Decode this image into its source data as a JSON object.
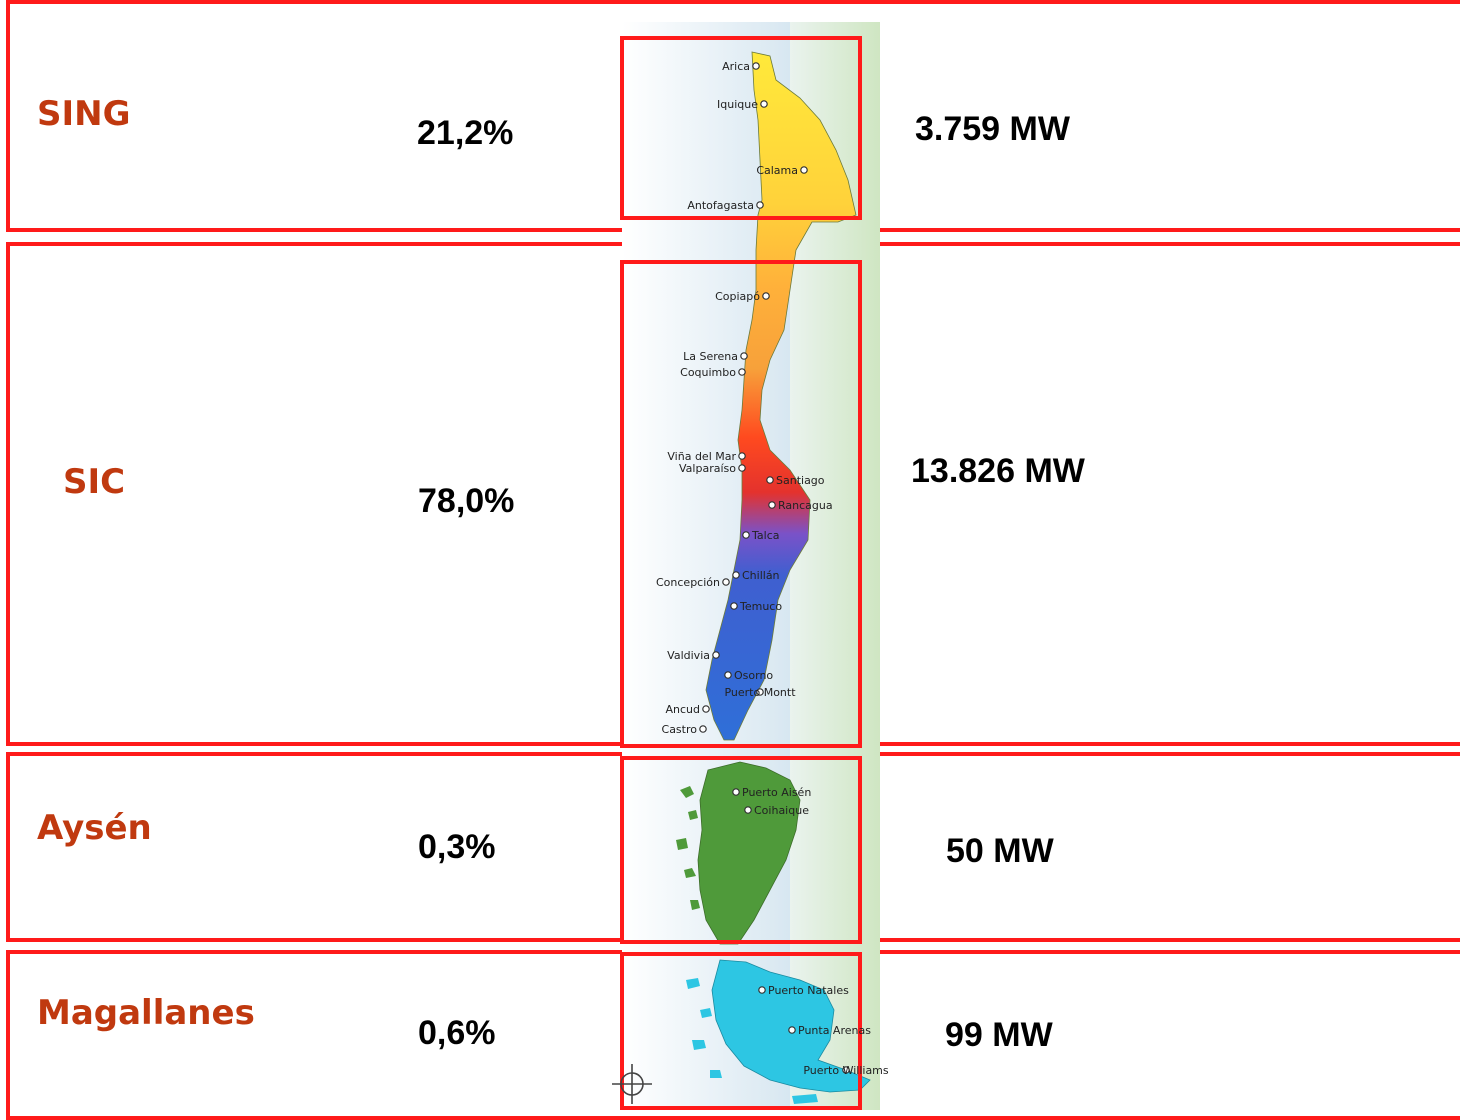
{
  "accent_color": "#ff1a1a",
  "label_color": "#c0390f",
  "regions": [
    {
      "name": "SING",
      "percent": "21,2%",
      "capacity": "3.759 MW"
    },
    {
      "name": "SIC",
      "percent": "78,0%",
      "capacity": "13.826 MW"
    },
    {
      "name": "Aysén",
      "percent": "0,3%",
      "capacity": "50 MW"
    },
    {
      "name": "Magallanes",
      "percent": "0,6%",
      "capacity": "99 MW"
    }
  ],
  "map": {
    "cities": [
      "Arica",
      "Iquique",
      "Calama",
      "Antofagasta",
      "Copiapó",
      "La Serena",
      "Coquimbo",
      "Viña del Mar",
      "Valparaíso",
      "Santiago",
      "Rancagua",
      "Talca",
      "Chillán",
      "Concepción",
      "Temuco",
      "Valdivia",
      "Osorno",
      "Puerto Montt",
      "Ancud",
      "Castro",
      "Puerto Aisén",
      "Coihaique",
      "Puerto Natales",
      "Punta Arenas",
      "Puerto Williams"
    ],
    "compass_icon": "compass-rose-icon"
  }
}
